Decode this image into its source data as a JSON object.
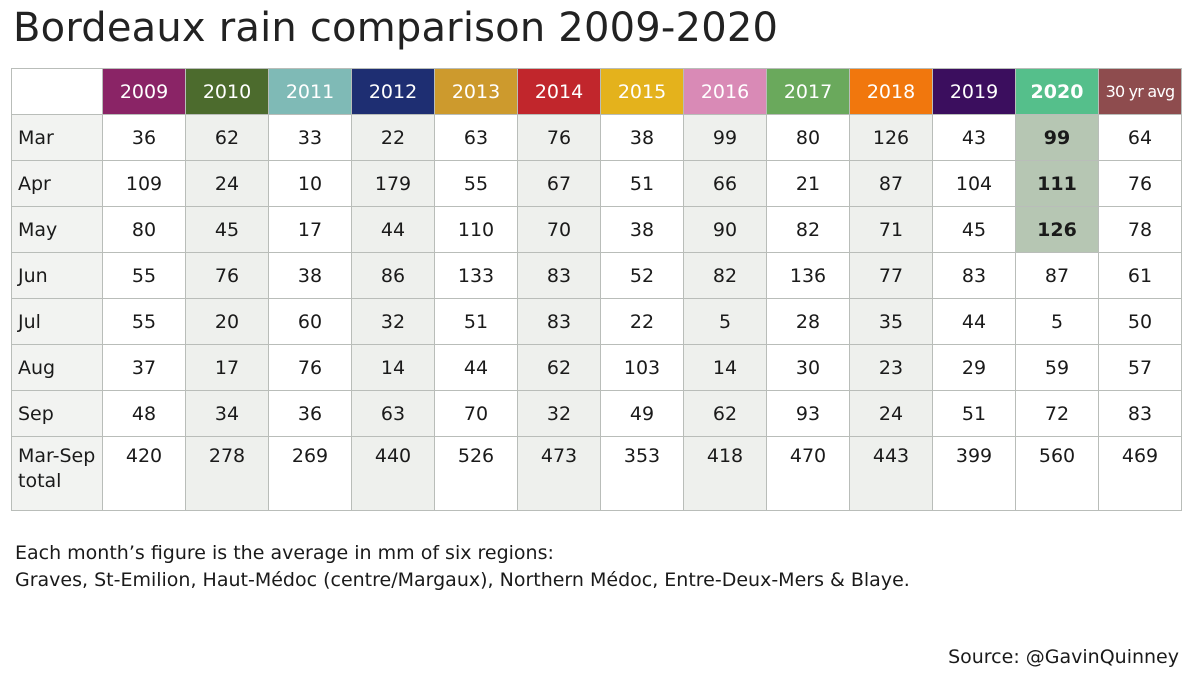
{
  "chart_data": {
    "type": "table",
    "title": "Bordeaux rain comparison 2009-2020",
    "corner_label": "",
    "columns": [
      {
        "label": "2009",
        "color": "#8a2466"
      },
      {
        "label": "2010",
        "color": "#4c6b2d"
      },
      {
        "label": "2011",
        "color": "#7fbab6"
      },
      {
        "label": "2012",
        "color": "#1e2e72"
      },
      {
        "label": "2013",
        "color": "#cd9a2d"
      },
      {
        "label": "2014",
        "color": "#c1262c"
      },
      {
        "label": "2015",
        "color": "#e4b21c"
      },
      {
        "label": "2016",
        "color": "#d98ab6"
      },
      {
        "label": "2017",
        "color": "#6aa95c"
      },
      {
        "label": "2018",
        "color": "#f1770d"
      },
      {
        "label": "2019",
        "color": "#3b0e5e"
      },
      {
        "label": "2020",
        "color": "#55bf8b"
      },
      {
        "label": "30 yr avg",
        "color": "#8e4c4e"
      }
    ],
    "highlight_column": "2020",
    "highlight_rows": [
      "Mar",
      "Apr",
      "May"
    ],
    "rows": [
      {
        "label": "Mar",
        "values": [
          "36",
          "62",
          "33",
          "22",
          "63",
          "76",
          "38",
          "99",
          "80",
          "126",
          "43",
          "99",
          "64"
        ]
      },
      {
        "label": "Apr",
        "values": [
          "109",
          "24",
          "10",
          "179",
          "55",
          "67",
          "51",
          "66",
          "21",
          "87",
          "104",
          "111",
          "76"
        ]
      },
      {
        "label": "May",
        "values": [
          "80",
          "45",
          "17",
          "44",
          "110",
          "70",
          "38",
          "90",
          "82",
          "71",
          "45",
          "126",
          "78"
        ]
      },
      {
        "label": "Jun",
        "values": [
          "55",
          "76",
          "38",
          "86",
          "133",
          "83",
          "52",
          "82",
          "136",
          "77",
          "83",
          "87",
          "61"
        ]
      },
      {
        "label": "Jul",
        "values": [
          "55",
          "20",
          "60",
          "32",
          "51",
          "83",
          "22",
          "5",
          "28",
          "35",
          "44",
          "5",
          "50"
        ]
      },
      {
        "label": "Aug",
        "values": [
          "37",
          "17",
          "76",
          "14",
          "44",
          "62",
          "103",
          "14",
          "30",
          "23",
          "29",
          "59",
          "57"
        ]
      },
      {
        "label": "Sep",
        "values": [
          "48",
          "34",
          "36",
          "63",
          "70",
          "32",
          "49",
          "62",
          "93",
          "24",
          "51",
          "72",
          "83"
        ]
      },
      {
        "label": "Mar-Sep total",
        "values": [
          "420",
          "278",
          "269",
          "440",
          "526",
          "473",
          "353",
          "418",
          "470",
          "443",
          "399",
          "560",
          "469"
        ]
      }
    ],
    "units": "mm",
    "grid": true
  },
  "note": {
    "line1": "Each month’s figure is the average in mm of six regions:",
    "line2": "Graves, St-Emilion, Haut-Médoc (centre/Margaux), Northern Médoc, Entre-Deux-Mers & Blaye."
  },
  "source": "Source: @GavinQuinney"
}
